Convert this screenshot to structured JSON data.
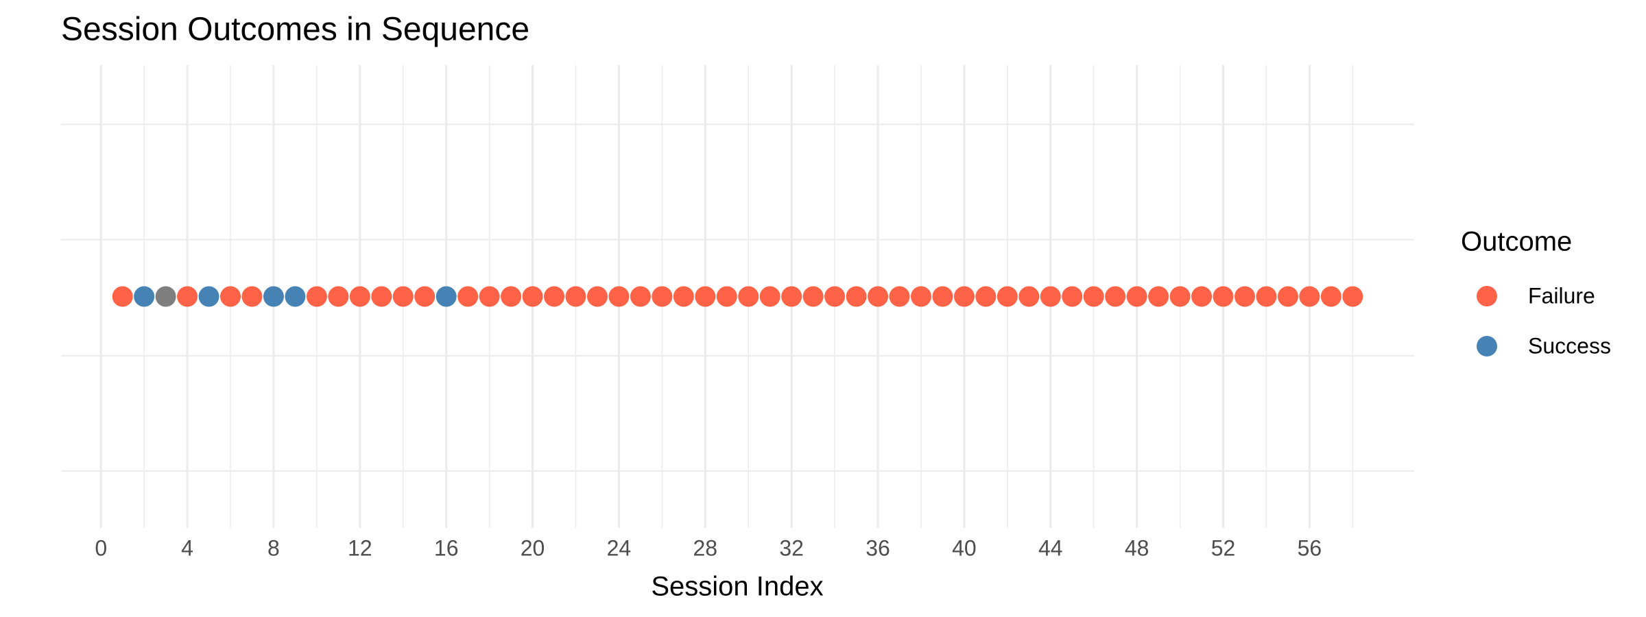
{
  "chart_data": {
    "type": "scatter",
    "title": "Session Outcomes in Sequence",
    "x_label": "Session Index",
    "legend_title": "Outcome",
    "legend_position": "right",
    "grid": true,
    "xlim": [
      -1.85,
      60.85
    ],
    "xticks": [
      0,
      4,
      8,
      12,
      16,
      20,
      24,
      28,
      32,
      36,
      40,
      44,
      48,
      52,
      56
    ],
    "x_minor_ticks": [
      2,
      6,
      10,
      14,
      18,
      22,
      26,
      30,
      34,
      38,
      42,
      46,
      50,
      54,
      58
    ],
    "series": [
      {
        "name": "Failure",
        "color": "#ff6347",
        "x": [
          1,
          4,
          6,
          7,
          10,
          11,
          12,
          13,
          14,
          15,
          17,
          18,
          19,
          20,
          21,
          22,
          23,
          24,
          25,
          26,
          27,
          28,
          29,
          30,
          31,
          32,
          33,
          34,
          35,
          36,
          37,
          38,
          39,
          40,
          41,
          42,
          43,
          44,
          45,
          46,
          47,
          48,
          49,
          50,
          51,
          52,
          53,
          54,
          55,
          56,
          57,
          58
        ]
      },
      {
        "name": "Success",
        "color": "#4682b4",
        "x": [
          2,
          5,
          8,
          9,
          16
        ]
      },
      {
        "color": "#7f7f7f",
        "x": [
          3
        ]
      }
    ]
  }
}
